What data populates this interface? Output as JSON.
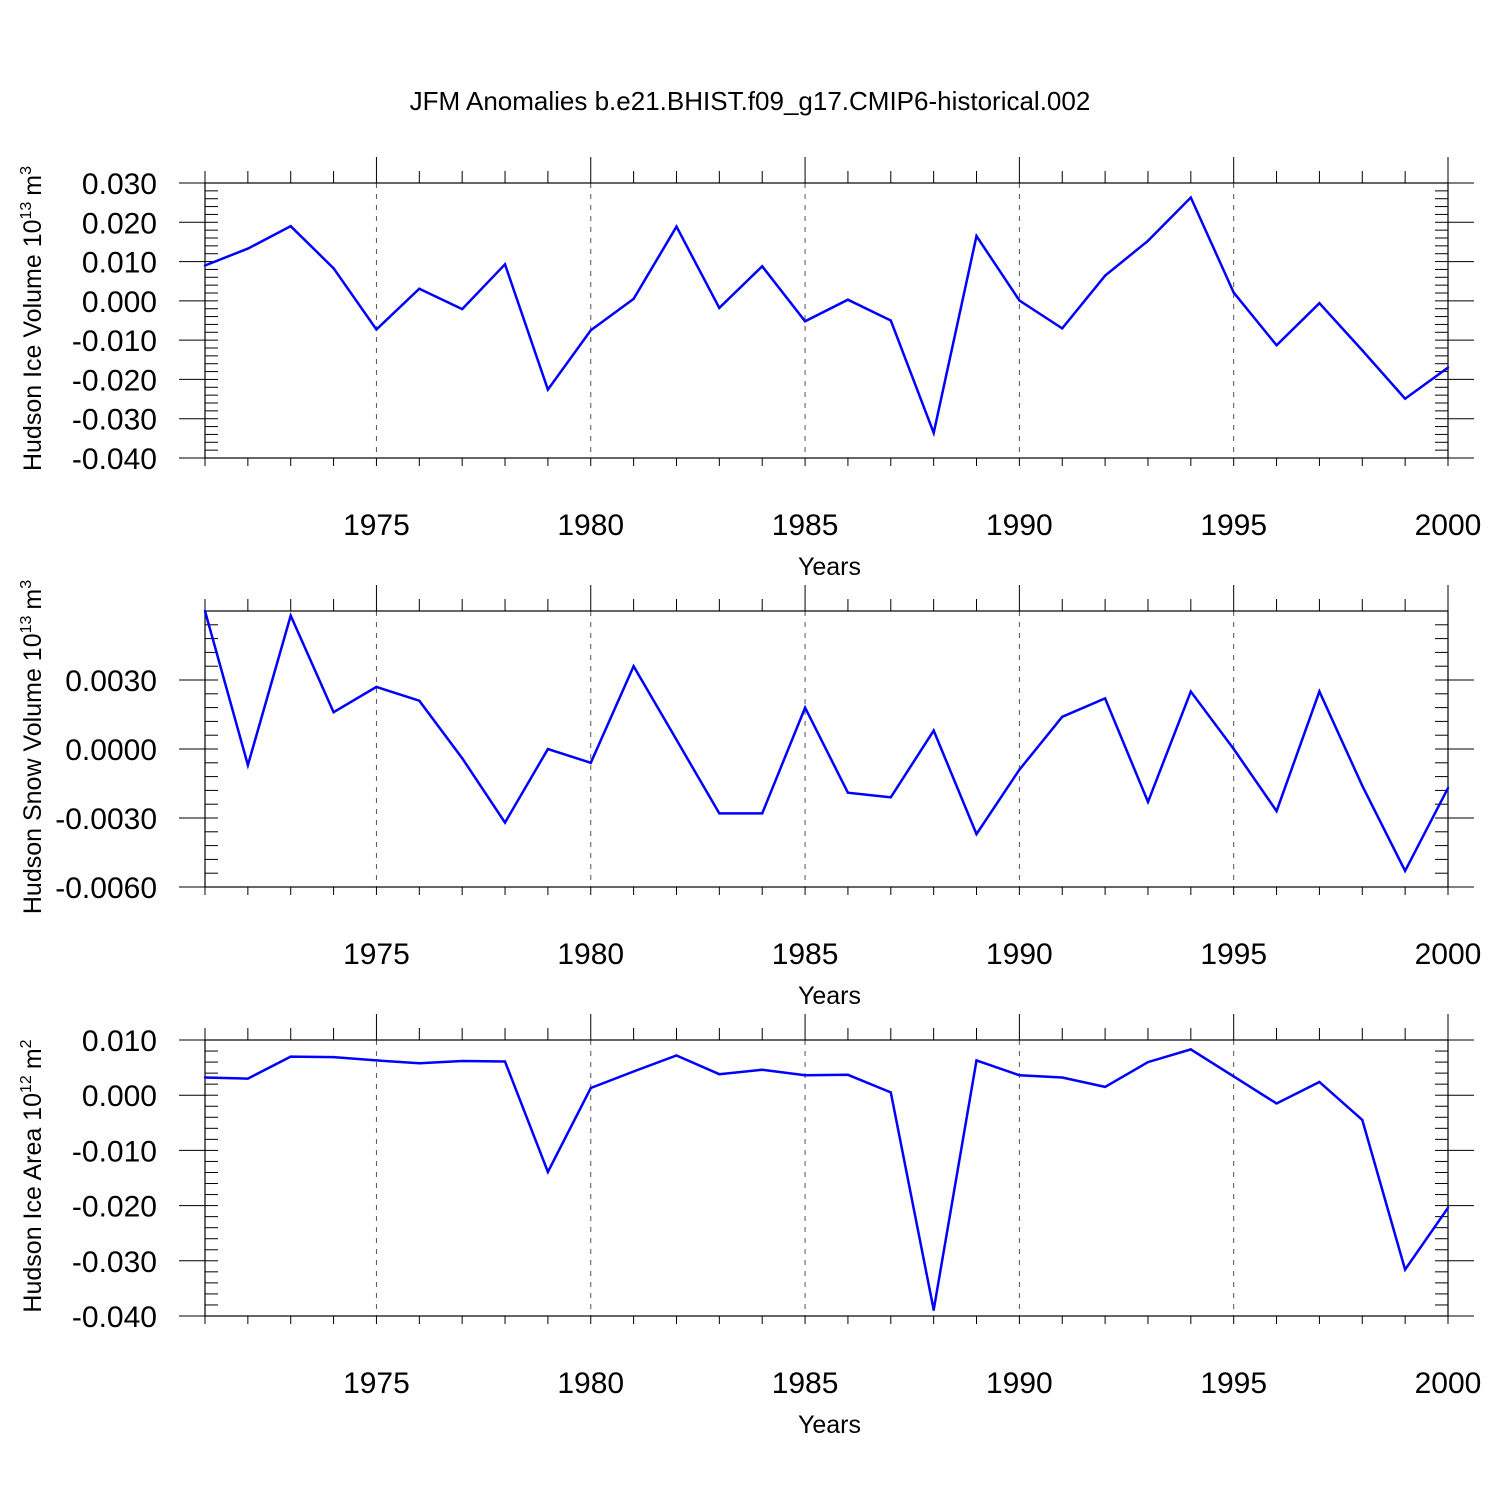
{
  "title": "JFM Anomalies b.e21.BHIST.f09_g17.CMIP6-historical.002",
  "colors": {
    "line": "#0000ff",
    "axis": "#000000"
  },
  "chart_data": [
    {
      "type": "line",
      "title": "",
      "xlabel": "Years",
      "ylabel": "Hudson Ice Volume 10",
      "ylabel_sup": "13",
      "ylabel_unit": "m",
      "ylabel_unit_sup": "3",
      "xlim": [
        1971,
        2000
      ],
      "ylim": [
        -0.04,
        0.03
      ],
      "x_ticks": [
        1975,
        1980,
        1985,
        1990,
        1995,
        2000
      ],
      "x_tick_labels": [
        "1975",
        "1980",
        "1985",
        "1990",
        "1995",
        "2000"
      ],
      "y_ticks": [
        -0.04,
        -0.03,
        -0.02,
        -0.01,
        0.0,
        0.01,
        0.02,
        0.03
      ],
      "y_tick_labels": [
        "-0.040",
        "-0.030",
        "-0.020",
        "-0.010",
        "0.000",
        "0.010",
        "0.020",
        "0.030"
      ],
      "y_minor_step": 0.002,
      "grid": "x-dashed",
      "x": [
        1971,
        1972,
        1973,
        1974,
        1975,
        1976,
        1977,
        1978,
        1979,
        1980,
        1981,
        1982,
        1983,
        1984,
        1985,
        1986,
        1987,
        1988,
        1989,
        1990,
        1991,
        1992,
        1993,
        1994,
        1995,
        1996,
        1997,
        1998,
        1999,
        2000
      ],
      "series": [
        {
          "values": [
            0.009,
            0.0133,
            0.019,
            0.0083,
            -0.0073,
            0.0031,
            -0.0021,
            0.0093,
            -0.0226,
            -0.0075,
            0.0005,
            0.0189,
            -0.0018,
            0.0088,
            -0.0052,
            0.0003,
            -0.005,
            -0.0336,
            0.0165,
            0.0001,
            -0.007,
            0.0064,
            0.0153,
            0.0263,
            0.0021,
            -0.0113,
            -0.0006,
            -0.0126,
            -0.0249,
            -0.017
          ]
        }
      ]
    },
    {
      "type": "line",
      "title": "",
      "xlabel": "Years",
      "ylabel": "Hudson Snow Volume 10",
      "ylabel_sup": "13",
      "ylabel_unit": "m",
      "ylabel_unit_sup": "3",
      "xlim": [
        1971,
        2000
      ],
      "ylim": [
        -0.006,
        0.006
      ],
      "x_ticks": [
        1975,
        1980,
        1985,
        1990,
        1995,
        2000
      ],
      "x_tick_labels": [
        "1975",
        "1980",
        "1985",
        "1990",
        "1995",
        "2000"
      ],
      "y_ticks": [
        -0.006,
        -0.003,
        0.0,
        0.003
      ],
      "y_tick_labels": [
        "-0.0060",
        "-0.0030",
        "0.0000",
        "0.0030"
      ],
      "y_minor_step": 0.0006,
      "grid": "x-dashed",
      "x": [
        1971,
        1972,
        1973,
        1974,
        1975,
        1976,
        1977,
        1978,
        1979,
        1980,
        1981,
        1982,
        1983,
        1984,
        1985,
        1986,
        1987,
        1988,
        1989,
        1990,
        1991,
        1992,
        1993,
        1994,
        1995,
        1996,
        1997,
        1998,
        1999,
        2000
      ],
      "series": [
        {
          "values": [
            0.006,
            -0.0007,
            0.0058,
            0.0016,
            0.0027,
            0.0021,
            -0.0004,
            -0.0032,
            0.0,
            -0.0006,
            0.0036,
            0.0004,
            -0.0028,
            -0.0028,
            0.0018,
            -0.0019,
            -0.0021,
            0.0008,
            -0.0037,
            -0.0009,
            0.0014,
            0.0022,
            -0.0023,
            0.0025,
            0.0,
            -0.0027,
            0.0025,
            -0.0016,
            -0.0053,
            -0.0017
          ]
        }
      ]
    },
    {
      "type": "line",
      "title": "",
      "xlabel": "Years",
      "ylabel": "Hudson Ice Area 10",
      "ylabel_sup": "12",
      "ylabel_unit": "m",
      "ylabel_unit_sup": "2",
      "xlim": [
        1971,
        2000
      ],
      "ylim": [
        -0.04,
        0.01
      ],
      "x_ticks": [
        1975,
        1980,
        1985,
        1990,
        1995,
        2000
      ],
      "x_tick_labels": [
        "1975",
        "1980",
        "1985",
        "1990",
        "1995",
        "2000"
      ],
      "y_ticks": [
        -0.04,
        -0.03,
        -0.02,
        -0.01,
        0.0,
        0.01
      ],
      "y_tick_labels": [
        "-0.040",
        "-0.030",
        "-0.020",
        "-0.010",
        "0.000",
        "0.010"
      ],
      "y_minor_step": 0.002,
      "grid": "x-dashed",
      "x": [
        1971,
        1972,
        1973,
        1974,
        1975,
        1976,
        1977,
        1978,
        1979,
        1980,
        1981,
        1982,
        1983,
        1984,
        1985,
        1986,
        1987,
        1988,
        1989,
        1990,
        1991,
        1992,
        1993,
        1994,
        1995,
        1996,
        1997,
        1998,
        1999,
        2000
      ],
      "series": [
        {
          "values": [
            0.0032,
            0.003,
            0.007,
            0.0069,
            0.0063,
            0.0058,
            0.0062,
            0.0061,
            -0.0139,
            0.0013,
            0.0043,
            0.0072,
            0.0038,
            0.0046,
            0.0036,
            0.0037,
            0.0005,
            -0.0389,
            0.0063,
            0.0036,
            0.0032,
            0.0015,
            0.006,
            0.0083,
            0.0034,
            -0.0015,
            0.0024,
            -0.0045,
            -0.0316,
            -0.0204
          ]
        }
      ]
    }
  ]
}
